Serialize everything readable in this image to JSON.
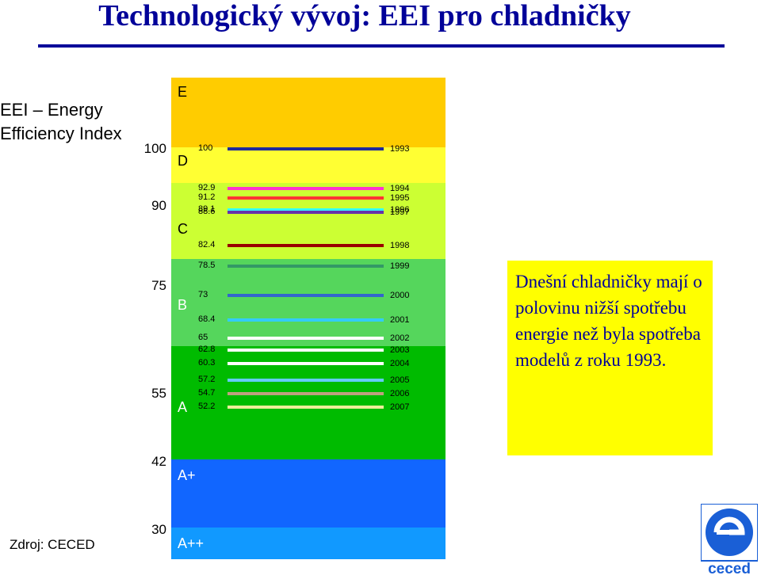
{
  "page": {
    "title": "Technologický vývoj: EEI pro chladničky",
    "source": "Zdroj: CECED",
    "callout": "Dnešní chladničky mají o polovinu nižší spotřebu energie než byla spotřeba modelů z roku 1993.",
    "logo_text": "ceced"
  },
  "chart_data": {
    "type": "bar",
    "ylabel": "EEI – Energy\nEfficiency Index",
    "yticks": [
      "100",
      "90",
      "75",
      "55",
      "42",
      "30"
    ],
    "classes": [
      {
        "name": "E",
        "color": "#ffcc00"
      },
      {
        "name": "D",
        "color": "#ffff33"
      },
      {
        "name": "C",
        "color": "#ccff33"
      },
      {
        "name": "B",
        "color": "#55d65c"
      },
      {
        "name": "A",
        "color": "#00bb00"
      },
      {
        "name": "A+",
        "color": "#1166ff"
      },
      {
        "name": "A++",
        "color": "#1199ff"
      }
    ],
    "series": [
      {
        "year": "1993",
        "eei": 100,
        "label": "100",
        "color": "#1f2a9c"
      },
      {
        "year": "1994",
        "eei": 92.9,
        "label": "92.9",
        "color": "#ff33cc"
      },
      {
        "year": "1995",
        "eei": 91.2,
        "label": "91.2",
        "color": "#ff3333"
      },
      {
        "year": "1996",
        "eei": 89.1,
        "label": "89.1",
        "color": "#33ffff"
      },
      {
        "year": "1997",
        "eei": 88.6,
        "label": "88.6",
        "color": "#6633aa"
      },
      {
        "year": "1998",
        "eei": 82.4,
        "label": "82.4",
        "color": "#990000"
      },
      {
        "year": "1999",
        "eei": 78.5,
        "label": "78.5",
        "color": "#339966"
      },
      {
        "year": "2000",
        "eei": 73,
        "label": "73",
        "color": "#3366cc"
      },
      {
        "year": "2001",
        "eei": 68.4,
        "label": "68.4",
        "color": "#33ccff"
      },
      {
        "year": "2002",
        "eei": 65,
        "label": "65",
        "color": "#ffffff"
      },
      {
        "year": "2003",
        "eei": 62.8,
        "label": "62.8",
        "color": "#ffffff"
      },
      {
        "year": "2004",
        "eei": 60.3,
        "label": "60.3",
        "color": "#ffffff"
      },
      {
        "year": "2005",
        "eei": 57.2,
        "label": "57.2",
        "color": "#66ccff"
      },
      {
        "year": "2006",
        "eei": 54.7,
        "label": "54.7",
        "color": "#c0a080"
      },
      {
        "year": "2007",
        "eei": 52.2,
        "label": "52.2",
        "color": "#eeee99"
      }
    ]
  }
}
